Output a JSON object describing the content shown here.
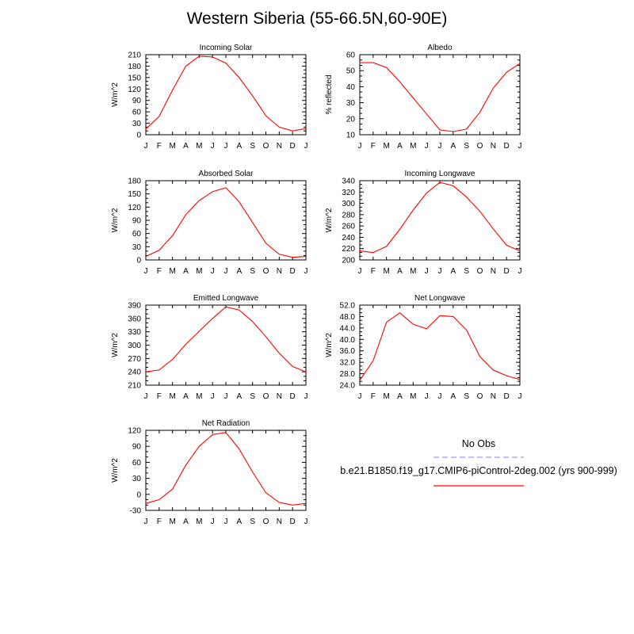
{
  "title": "Western Siberia (55-66.5N,60-90E)",
  "colors": {
    "model_line": "#ff0000",
    "obs_line": "#9999ff",
    "axes": "#000000"
  },
  "legend": {
    "obs_label": "No Obs",
    "model_label": "b.e21.B1850.f19_g17.CMIP6-piControl-2deg.002 (yrs 900-999)"
  },
  "chart_data": [
    {
      "type": "line",
      "title": "Incoming Solar",
      "ylabel": "W/m^2",
      "categories": [
        "J",
        "F",
        "M",
        "A",
        "M",
        "J",
        "J",
        "A",
        "S",
        "O",
        "N",
        "D",
        "J"
      ],
      "ylim": [
        0,
        210
      ],
      "yticks": [
        "0",
        "30",
        "60",
        "90",
        "120",
        "150",
        "180",
        "210"
      ],
      "grid": false,
      "series": [
        {
          "values": [
            15,
            48,
            117,
            180,
            206,
            204,
            188,
            150,
            102,
            50,
            20,
            10,
            16
          ]
        }
      ]
    },
    {
      "type": "line",
      "title": "Albedo",
      "ylabel": "% reflected",
      "categories": [
        "J",
        "F",
        "M",
        "A",
        "M",
        "J",
        "J",
        "A",
        "S",
        "O",
        "N",
        "D",
        "J"
      ],
      "ylim": [
        10,
        60
      ],
      "yticks": [
        "10",
        "20",
        "30",
        "40",
        "50",
        "60"
      ],
      "grid": false,
      "series": [
        {
          "values": [
            55,
            55,
            52,
            43,
            33,
            23,
            13,
            12,
            13.5,
            24,
            39,
            49,
            54.5
          ]
        }
      ]
    },
    {
      "type": "line",
      "title": "Absorbed Solar",
      "ylabel": "W/m^2",
      "categories": [
        "J",
        "F",
        "M",
        "A",
        "M",
        "J",
        "J",
        "A",
        "S",
        "O",
        "N",
        "D",
        "J"
      ],
      "ylim": [
        0,
        180
      ],
      "yticks": [
        "0",
        "30",
        "60",
        "90",
        "120",
        "150",
        "180"
      ],
      "grid": false,
      "series": [
        {
          "values": [
            8,
            22,
            55,
            103,
            135,
            155,
            164,
            132,
            85,
            38,
            13,
            6,
            8
          ]
        }
      ]
    },
    {
      "type": "line",
      "title": "Incoming Longwave",
      "ylabel": "W/m^2",
      "categories": [
        "J",
        "F",
        "M",
        "A",
        "M",
        "J",
        "J",
        "A",
        "S",
        "O",
        "N",
        "D",
        "J"
      ],
      "ylim": [
        200,
        340
      ],
      "yticks": [
        "200",
        "220",
        "240",
        "260",
        "280",
        "300",
        "320",
        "340"
      ],
      "grid": false,
      "series": [
        {
          "values": [
            216,
            213,
            224,
            254,
            288,
            318,
            337,
            331,
            311,
            286,
            255,
            226,
            216
          ]
        }
      ]
    },
    {
      "type": "line",
      "title": "Emitted Longwave",
      "ylabel": "W/m^2",
      "categories": [
        "J",
        "F",
        "M",
        "A",
        "M",
        "J",
        "J",
        "A",
        "S",
        "O",
        "N",
        "D",
        "J"
      ],
      "ylim": [
        210,
        390
      ],
      "yticks": [
        "210",
        "240",
        "270",
        "300",
        "330",
        "360",
        "390"
      ],
      "grid": false,
      "series": [
        {
          "values": [
            240,
            244,
            268,
            302,
            331,
            360,
            386,
            379,
            353,
            319,
            282,
            252,
            240
          ]
        }
      ]
    },
    {
      "type": "line",
      "title": "Net Longwave",
      "ylabel": "W/m^2",
      "categories": [
        "J",
        "F",
        "M",
        "A",
        "M",
        "J",
        "J",
        "A",
        "S",
        "O",
        "N",
        "D",
        "J"
      ],
      "ylim": [
        24,
        52
      ],
      "yticks": [
        "24.0",
        "28.0",
        "32.0",
        "36.0",
        "40.0",
        "44.0",
        "48.0",
        "52.0"
      ],
      "grid": false,
      "series": [
        {
          "values": [
            25.7,
            32.5,
            46,
            49.3,
            45.3,
            43.7,
            48.3,
            48,
            43.3,
            34,
            29.3,
            27.3,
            26
          ]
        }
      ]
    },
    {
      "type": "line",
      "title": "Net Radiation",
      "ylabel": "W/m^2",
      "categories": [
        "J",
        "F",
        "M",
        "A",
        "M",
        "J",
        "J",
        "A",
        "S",
        "O",
        "N",
        "D",
        "J"
      ],
      "ylim": [
        -30,
        120
      ],
      "yticks": [
        "-30",
        "0",
        "30",
        "60",
        "90",
        "120"
      ],
      "grid": false,
      "series": [
        {
          "values": [
            -17,
            -10,
            10,
            55,
            90,
            112,
            116,
            85,
            42,
            3,
            -15,
            -20,
            -17
          ]
        }
      ]
    }
  ]
}
